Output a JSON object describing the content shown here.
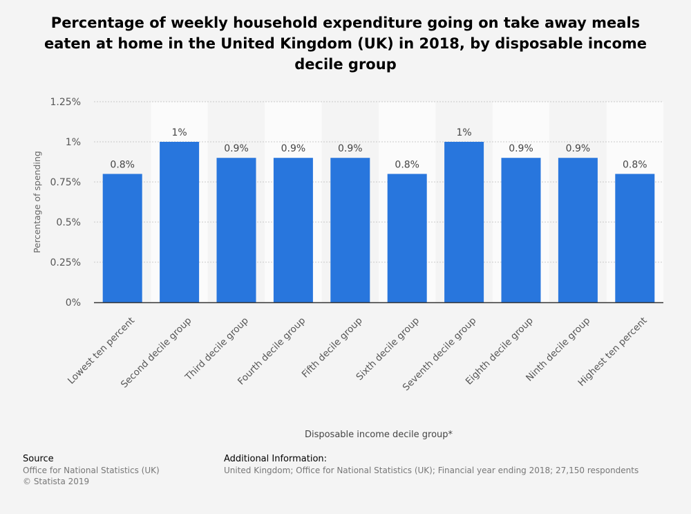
{
  "title": "Percentage of weekly household expenditure going on take away meals eaten at home in the United Kingdom (UK) in 2018, by disposable income decile group",
  "chart_data": {
    "type": "bar",
    "categories": [
      "Lowest ten percent",
      "Second decile group",
      "Third decile group",
      "Fourth decile group",
      "Fifth decile group",
      "Sixth decile group",
      "Seventh decile group",
      "Eighth decile group",
      "Ninth decile group",
      "Highest ten percent"
    ],
    "values": [
      0.8,
      1,
      0.9,
      0.9,
      0.9,
      0.8,
      1,
      0.9,
      0.9,
      0.8
    ],
    "value_labels": [
      "0.8%",
      "1%",
      "0.9%",
      "0.9%",
      "0.9%",
      "0.8%",
      "1%",
      "0.9%",
      "0.9%",
      "0.8%"
    ],
    "ylim": [
      0,
      1.25
    ],
    "yticks": [
      0,
      0.25,
      0.5,
      0.75,
      1,
      1.25
    ],
    "ytick_labels": [
      "0%",
      "0.25%",
      "0.5%",
      "0.75%",
      "1%",
      "1.25%"
    ],
    "xlabel": "Disposable income decile group*",
    "ylabel": "Percentage of spending",
    "grid": true,
    "bar_color": "#2876dd"
  },
  "footer": {
    "source_heading": "Source",
    "source_line": "Office for National Statistics (UK)",
    "copyright": "© Statista 2019",
    "info_heading": "Additional Information:",
    "info_text": "United Kingdom; Office for National Statistics (UK); Financial year ending 2018; 27,150 respondents"
  }
}
